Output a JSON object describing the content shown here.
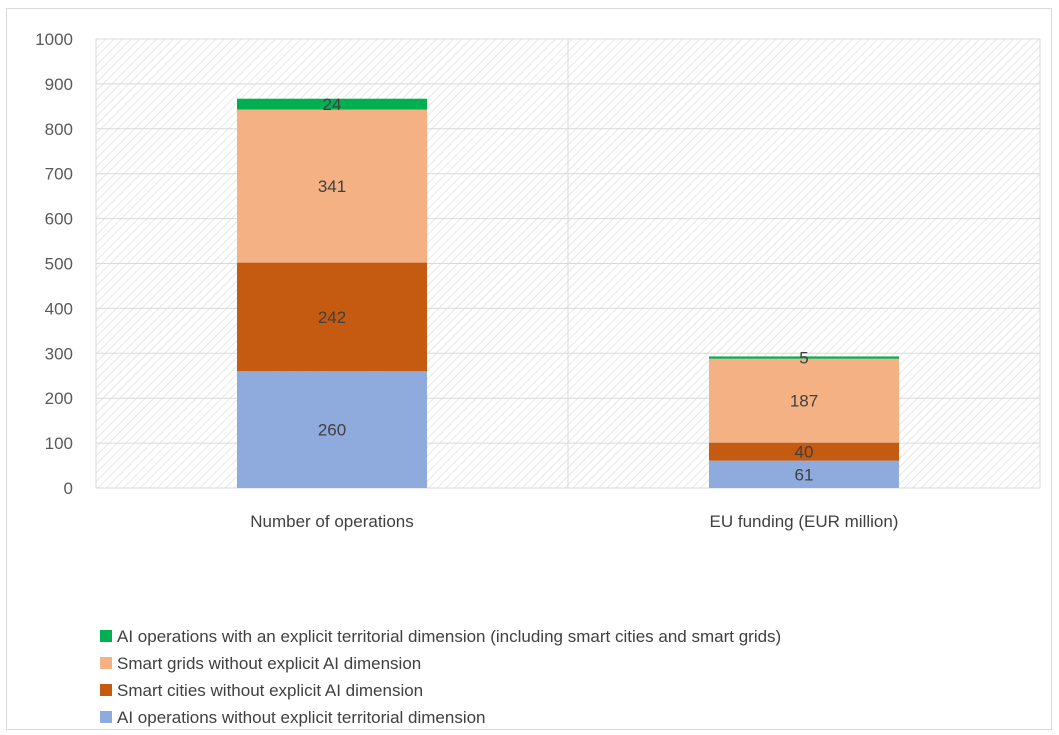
{
  "chart_data": {
    "type": "bar",
    "stacked": true,
    "categories": [
      "Number of operations",
      "EU funding (EUR million)"
    ],
    "series": [
      {
        "name": "AI operations without explicit territorial dimension",
        "values": [
          260,
          61
        ],
        "color": "#8faadc"
      },
      {
        "name": "Smart cities without explicit AI dimension",
        "values": [
          242,
          40
        ],
        "color": "#c55a11"
      },
      {
        "name": "Smart grids without explicit AI dimension",
        "values": [
          341,
          187
        ],
        "color": "#f4b183"
      },
      {
        "name": "AI operations with an explicit territorial dimension (including smart cities and smart grids)",
        "values": [
          24,
          5
        ],
        "color": "#00b050"
      }
    ],
    "ylim": [
      0,
      1000
    ],
    "yticks": [
      0,
      100,
      200,
      300,
      400,
      500,
      600,
      700,
      800,
      900,
      1000
    ],
    "grid": true,
    "legend_position": "bottom-left",
    "legend_order": [
      3,
      2,
      1,
      0
    ]
  }
}
